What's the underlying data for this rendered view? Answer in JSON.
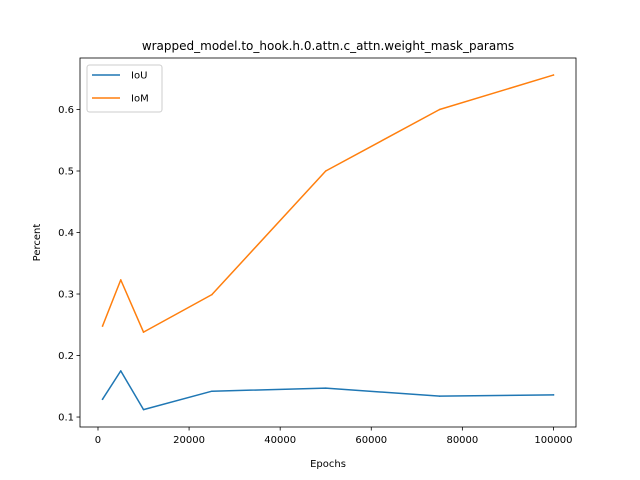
{
  "chart_data": {
    "type": "line",
    "title": "wrapped_model.to_hook.h.0.attn.c_attn.weight_mask_params",
    "xlabel": "Epochs",
    "ylabel": "Percent",
    "x": [
      1000,
      5000,
      10000,
      25000,
      50000,
      75000,
      100000
    ],
    "series": [
      {
        "name": "IoU",
        "color": "#1f77b4",
        "values": [
          0.129,
          0.175,
          0.112,
          0.142,
          0.147,
          0.134,
          0.136
        ]
      },
      {
        "name": "IoM",
        "color": "#ff7f0e",
        "values": [
          0.248,
          0.323,
          0.238,
          0.299,
          0.5,
          0.6,
          0.656
        ]
      }
    ],
    "xlim": [
      -3950,
      104950
    ],
    "ylim": [
      0.0838,
      0.6837
    ],
    "xticks": [
      0,
      20000,
      40000,
      60000,
      80000,
      100000
    ],
    "yticks": [
      0.1,
      0.2,
      0.3,
      0.4,
      0.5,
      0.6
    ],
    "xtick_labels": [
      "0",
      "20000",
      "40000",
      "60000",
      "80000",
      "100000"
    ],
    "ytick_labels": [
      "0.1",
      "0.2",
      "0.3",
      "0.4",
      "0.5",
      "0.6"
    ],
    "grid": false,
    "legend_position": "upper-left"
  }
}
